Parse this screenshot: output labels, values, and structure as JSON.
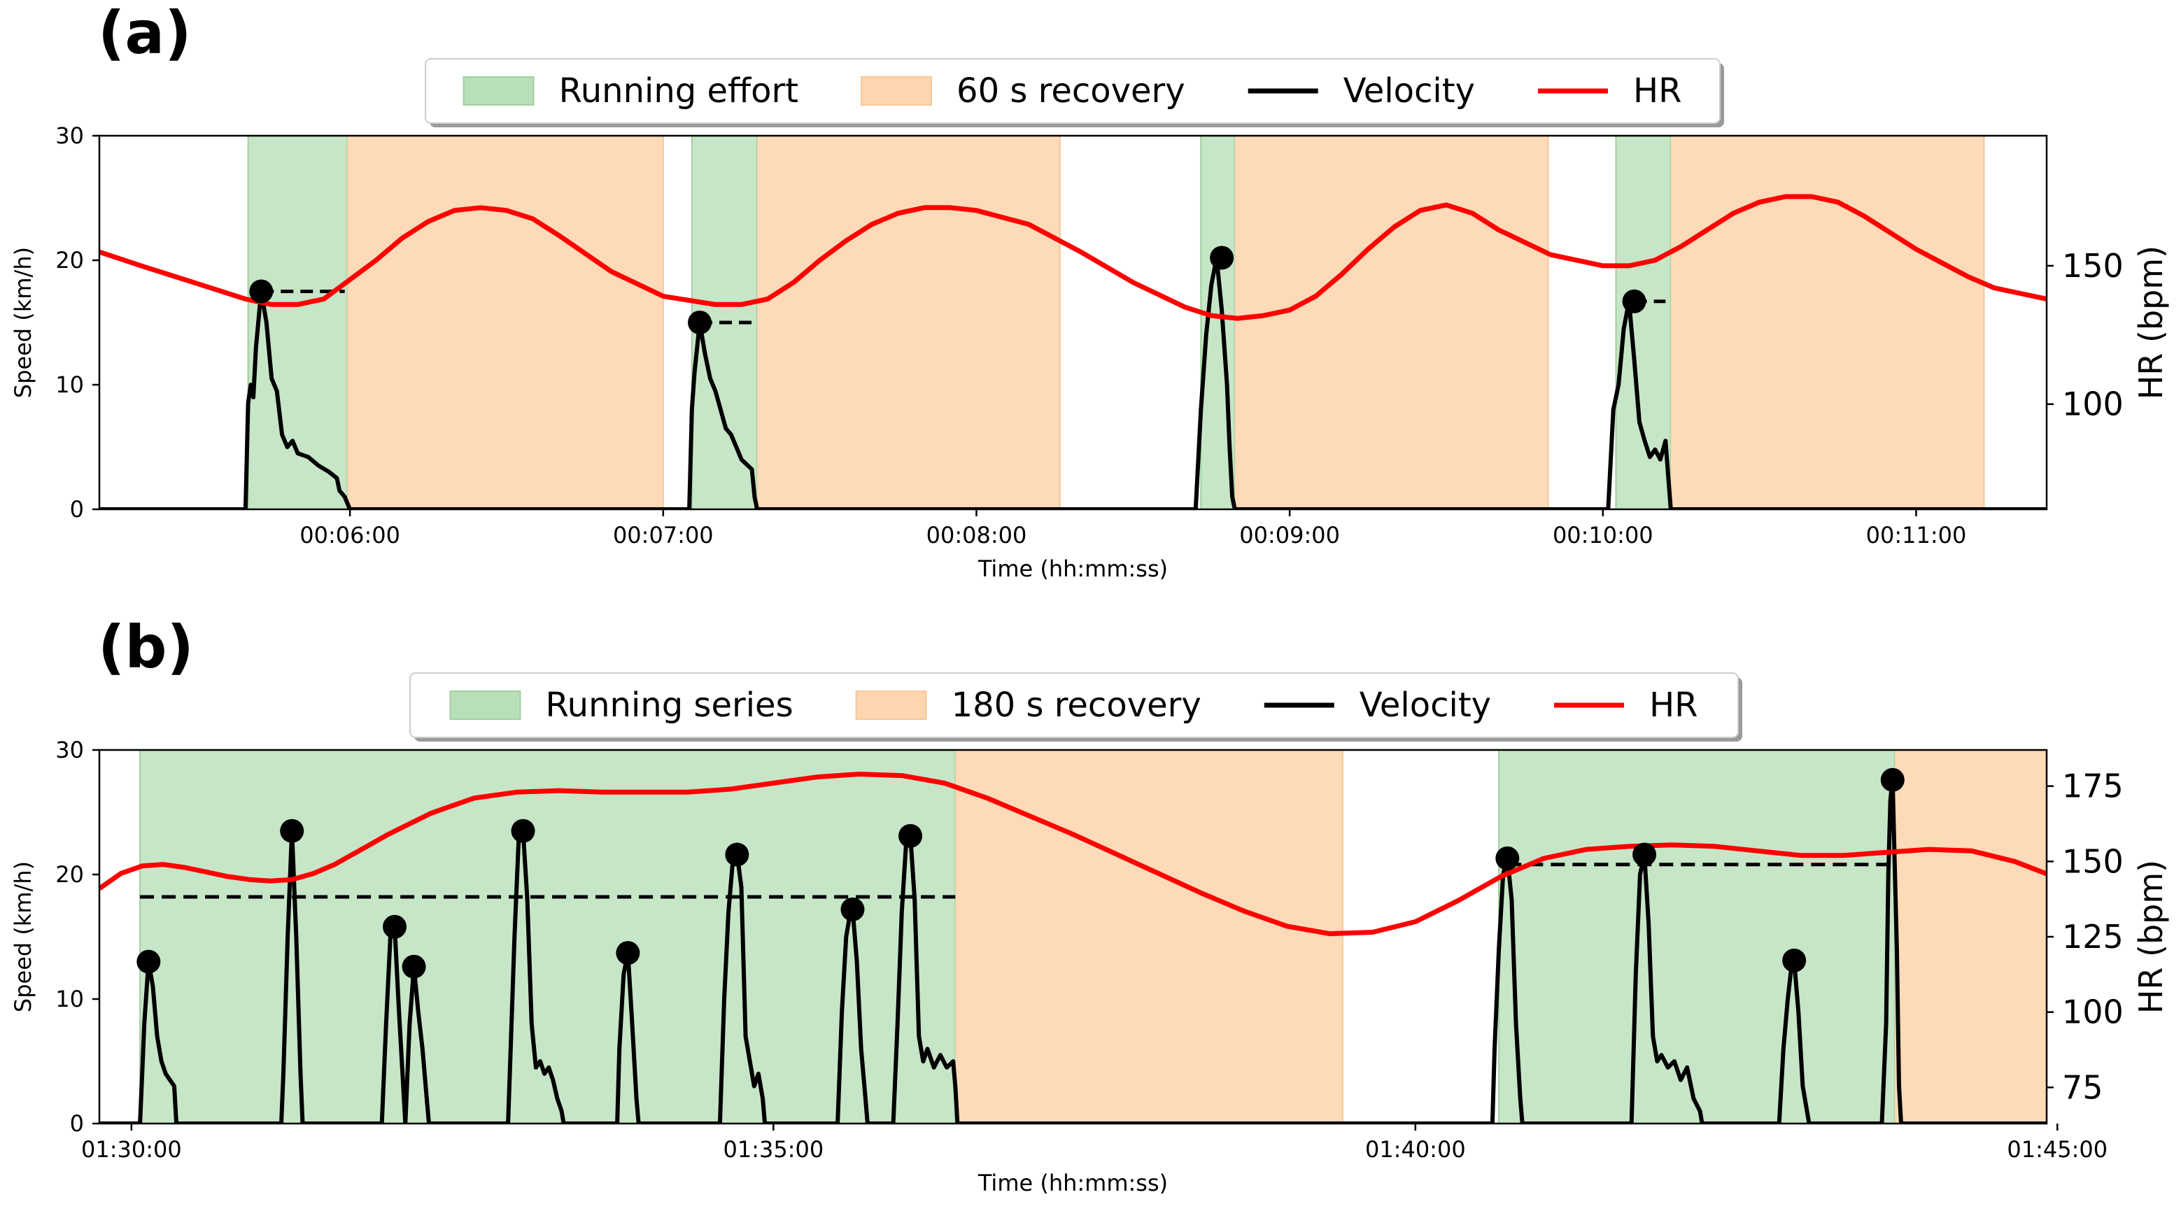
{
  "colors": {
    "effort": "#b9dfb9",
    "recovery": "#fdd6b0",
    "velocity": "#000000",
    "hr": "#ff0000",
    "axis": "#000000"
  },
  "chart_data": [
    {
      "panel_label": "(a)",
      "type": "line",
      "xlabel": "Time (hh:mm:ss)",
      "ylabel": "Speed (km/h)",
      "ylabel_right": "HR (bpm)",
      "xlim_s": [
        312,
        685
      ],
      "ylim": [
        0,
        30
      ],
      "ylim_right": [
        62,
        197
      ],
      "xticks": [
        {
          "t": 360,
          "label": "00:06:00"
        },
        {
          "t": 420,
          "label": "00:07:00"
        },
        {
          "t": 480,
          "label": "00:08:00"
        },
        {
          "t": 540,
          "label": "00:09:00"
        },
        {
          "t": 600,
          "label": "00:10:00"
        },
        {
          "t": 660,
          "label": "00:11:00"
        }
      ],
      "yticks": [
        0,
        10,
        20,
        30
      ],
      "yticks_right": [
        100,
        150
      ],
      "legend": {
        "placement": "top-center",
        "entries": [
          {
            "kind": "patch",
            "color_key": "effort",
            "label": "Running effort"
          },
          {
            "kind": "patch",
            "color_key": "recovery",
            "label": "60 s recovery"
          },
          {
            "kind": "line",
            "color_key": "velocity",
            "label": "Velocity"
          },
          {
            "kind": "line",
            "color_key": "hr",
            "label": "HR"
          }
        ]
      },
      "effort_bands": [
        [
          340.5,
          359.5
        ],
        [
          425.5,
          438
        ],
        [
          523,
          529.5
        ],
        [
          602.5,
          613
        ]
      ],
      "recovery_bands": [
        [
          359.5,
          420
        ],
        [
          438,
          496
        ],
        [
          529.5,
          589.5
        ],
        [
          613,
          673
        ]
      ],
      "peaks": [
        {
          "t": 343,
          "v": 17.5,
          "dash_end": 359
        },
        {
          "t": 427,
          "v": 15.0,
          "dash_end": 437
        },
        {
          "t": 527,
          "v": 20.2,
          "dash_end": 529
        },
        {
          "t": 606,
          "v": 16.7,
          "dash_end": 612
        }
      ],
      "velocity": {
        "t": [
          312,
          340,
          340.5,
          341,
          341.5,
          342,
          343,
          344,
          345,
          346,
          347,
          348,
          349,
          350,
          352,
          354,
          356,
          357.5,
          358,
          359,
          359.5,
          360,
          425,
          425.5,
          426,
          427,
          428,
          429,
          430,
          431,
          432,
          433,
          434,
          435,
          437,
          437.5,
          438,
          522,
          523,
          524,
          525,
          526,
          527,
          528,
          528.5,
          529,
          529.5,
          601,
          602,
          603,
          604,
          605,
          606,
          607,
          608,
          609,
          610,
          611,
          612,
          613,
          685
        ],
        "v": [
          0,
          0,
          8.5,
          10,
          9,
          13,
          17.5,
          15,
          10.5,
          9.5,
          6,
          5,
          5.5,
          4.5,
          4.2,
          3.5,
          3,
          2.5,
          1.5,
          1,
          0.5,
          0,
          0,
          8,
          11,
          15,
          12.5,
          10.5,
          9.5,
          8,
          6.5,
          6,
          5,
          4,
          3.2,
          1,
          0,
          0,
          8,
          14,
          18,
          20.2,
          16,
          10,
          5,
          1,
          0,
          0,
          8,
          10,
          14.5,
          16.7,
          12,
          7,
          5.5,
          4.2,
          4.8,
          4,
          5.5,
          0,
          0
        ]
      },
      "hr": {
        "t": [
          312,
          320,
          330,
          340,
          345,
          350,
          355,
          360,
          365,
          370,
          375,
          380,
          385,
          390,
          395,
          400,
          410,
          420,
          430,
          435,
          440,
          445,
          450,
          455,
          460,
          465,
          470,
          475,
          480,
          490,
          500,
          510,
          520,
          525,
          530,
          535,
          540,
          545,
          550,
          555,
          560,
          565,
          570,
          575,
          580,
          590,
          600,
          605,
          610,
          615,
          620,
          625,
          630,
          635,
          640,
          645,
          650,
          655,
          660,
          665,
          670,
          675,
          680,
          685
        ],
        "v": [
          155,
          150,
          144,
          138,
          136,
          136,
          138,
          145,
          152,
          160,
          166,
          170,
          171,
          170,
          167,
          161,
          148,
          139,
          136,
          136,
          138,
          144,
          152,
          159,
          165,
          169,
          171,
          171,
          170,
          165,
          155,
          144,
          135,
          132,
          131,
          132,
          134,
          139,
          147,
          156,
          164,
          170,
          172,
          169,
          163,
          154,
          150,
          150,
          152,
          157,
          163,
          169,
          173,
          175,
          175,
          173,
          168,
          162,
          156,
          151,
          146,
          142,
          140,
          138
        ]
      }
    },
    {
      "panel_label": "(b)",
      "type": "line",
      "xlabel": "Time (hh:mm:ss)",
      "ylabel": "Speed (km/h)",
      "ylabel_right": "HR (bpm)",
      "xlim_s": [
        5385,
        6295
      ],
      "ylim": [
        0,
        30
      ],
      "ylim_right": [
        63,
        187
      ],
      "xticks": [
        {
          "t": 5400,
          "label": "01:30:00"
        },
        {
          "t": 5700,
          "label": "01:35:00"
        },
        {
          "t": 6000,
          "label": "01:40:00"
        },
        {
          "t": 6300,
          "label": "01:45:00"
        }
      ],
      "yticks": [
        0,
        10,
        20,
        30
      ],
      "yticks_right": [
        75,
        100,
        125,
        150,
        175
      ],
      "legend": {
        "placement": "top-center",
        "entries": [
          {
            "kind": "patch",
            "color_key": "effort",
            "label": "Running series"
          },
          {
            "kind": "patch",
            "color_key": "recovery",
            "label": "180 s recovery"
          },
          {
            "kind": "line",
            "color_key": "velocity",
            "label": "Velocity"
          },
          {
            "kind": "line",
            "color_key": "hr",
            "label": "HR"
          }
        ]
      },
      "effort_bands": [
        [
          5404,
          5785
        ],
        [
          6039,
          6224
        ]
      ],
      "recovery_bands": [
        [
          5785,
          5966
        ],
        [
          6224,
          6404
        ]
      ],
      "peaks": [
        {
          "t": 5408,
          "v": 13.0
        },
        {
          "t": 5475,
          "v": 23.5
        },
        {
          "t": 5523,
          "v": 15.8
        },
        {
          "t": 5532,
          "v": 12.6
        },
        {
          "t": 5583,
          "v": 23.5
        },
        {
          "t": 5632,
          "v": 13.7
        },
        {
          "t": 5683,
          "v": 21.6
        },
        {
          "t": 5737,
          "v": 17.2
        },
        {
          "t": 5764,
          "v": 23.1
        },
        {
          "t": 6043,
          "v": 21.3
        },
        {
          "t": 6107,
          "v": 21.6
        },
        {
          "t": 6177,
          "v": 13.1
        },
        {
          "t": 6223,
          "v": 27.6
        }
      ],
      "avg_lines": [
        {
          "t0": 5404,
          "t1": 5785,
          "v": 18.2
        },
        {
          "t0": 6043,
          "t1": 6224,
          "v": 20.8
        }
      ],
      "velocity": {
        "t": [
          5385,
          5404,
          5405,
          5406,
          5408,
          5410,
          5412,
          5414,
          5416,
          5418,
          5420,
          5421,
          5470,
          5471,
          5473,
          5475,
          5477,
          5479,
          5480,
          5517,
          5519,
          5521,
          5523,
          5525,
          5527,
          5528,
          5530,
          5532,
          5534,
          5536,
          5538,
          5539,
          5576,
          5577,
          5579,
          5581,
          5583,
          5585,
          5587,
          5589,
          5591,
          5593,
          5595,
          5597,
          5599,
          5601,
          5602,
          5627,
          5628,
          5630,
          5632,
          5634,
          5636,
          5637,
          5675,
          5677,
          5679,
          5681,
          5683,
          5685,
          5687,
          5689,
          5691,
          5693,
          5695,
          5696,
          5730,
          5732,
          5734,
          5736,
          5737,
          5739,
          5741,
          5743,
          5744,
          5756,
          5758,
          5760,
          5762,
          5764,
          5766,
          5768,
          5770,
          5772,
          5775,
          5778,
          5781,
          5784,
          5785,
          5786,
          6036,
          6037,
          6039,
          6041,
          6043,
          6045,
          6047,
          6049,
          6050,
          6101,
          6103,
          6105,
          6107,
          6109,
          6111,
          6113,
          6115,
          6118,
          6121,
          6124,
          6127,
          6130,
          6133,
          6134,
          6170,
          6172,
          6174,
          6176,
          6177,
          6179,
          6181,
          6183,
          6184,
          6218,
          6220,
          6221,
          6222,
          6223,
          6225,
          6226,
          6227,
          6295
        ],
        "v": [
          0,
          0,
          4,
          8,
          13,
          11,
          7,
          5,
          4,
          3.5,
          3,
          0,
          0,
          4,
          15,
          23.5,
          15,
          4,
          0,
          0,
          8,
          15,
          15.8,
          9,
          3,
          0,
          8,
          12.6,
          9,
          6,
          2,
          0,
          0,
          5,
          15,
          23,
          23.5,
          18,
          8,
          4.5,
          5,
          4,
          4.5,
          3.5,
          2,
          1,
          0,
          0,
          6,
          12,
          13.7,
          8,
          2,
          0,
          0,
          10,
          17,
          21,
          21.6,
          19,
          7,
          5,
          3,
          4,
          2,
          0,
          0,
          9,
          15,
          17,
          17.2,
          13,
          6,
          2,
          0,
          0,
          8,
          17,
          22.5,
          23.1,
          18,
          7,
          5,
          6,
          4.5,
          5.5,
          4.5,
          5,
          3,
          0,
          0,
          6,
          14,
          20,
          21.3,
          18,
          8,
          2,
          0,
          0,
          12,
          20,
          21.6,
          16,
          7,
          5,
          5.5,
          4.5,
          5,
          3.5,
          4.5,
          2,
          1,
          0,
          0,
          6,
          10,
          13,
          13.1,
          9,
          3,
          1,
          0,
          0,
          8,
          20,
          26,
          27.6,
          14,
          3,
          0,
          0
        ]
      },
      "hr": {
        "t": [
          5385,
          5395,
          5405,
          5415,
          5425,
          5435,
          5445,
          5455,
          5465,
          5475,
          5485,
          5495,
          5505,
          5520,
          5540,
          5560,
          5580,
          5600,
          5620,
          5640,
          5660,
          5680,
          5700,
          5720,
          5740,
          5760,
          5780,
          5800,
          5820,
          5840,
          5860,
          5880,
          5900,
          5920,
          5940,
          5960,
          5980,
          6000,
          6020,
          6040,
          6060,
          6080,
          6100,
          6120,
          6140,
          6160,
          6180,
          6200,
          6220,
          6240,
          6260,
          6280,
          6300,
          6320,
          6340,
          6360,
          6380,
          6400,
          6420,
          6440,
          6460,
          6480,
          6500
        ],
        "v": [
          141,
          146,
          148.5,
          149,
          148,
          146.5,
          145,
          144,
          143.5,
          144,
          146,
          149,
          153,
          159,
          166,
          171,
          173,
          173.5,
          173,
          173,
          173,
          174,
          176,
          178,
          179,
          178.5,
          176,
          171,
          165,
          159,
          152.5,
          146,
          139.5,
          133.5,
          128.5,
          126,
          126.5,
          130,
          137,
          145,
          151,
          154,
          155,
          155.5,
          155,
          153.5,
          152,
          152,
          153,
          154,
          153.5,
          150,
          144.5,
          139.5,
          135.5,
          133,
          131,
          130,
          129,
          127.5,
          124.5,
          121,
          118
        ]
      }
    }
  ]
}
